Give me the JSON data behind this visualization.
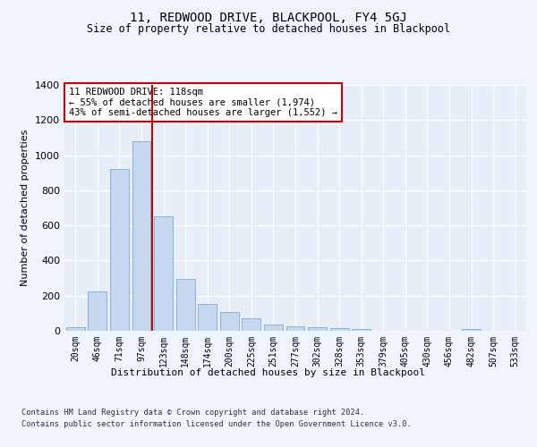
{
  "title": "11, REDWOOD DRIVE, BLACKPOOL, FY4 5GJ",
  "subtitle": "Size of property relative to detached houses in Blackpool",
  "xlabel": "Distribution of detached houses by size in Blackpool",
  "ylabel": "Number of detached properties",
  "categories": [
    "20sqm",
    "46sqm",
    "71sqm",
    "97sqm",
    "123sqm",
    "148sqm",
    "174sqm",
    "200sqm",
    "225sqm",
    "251sqm",
    "277sqm",
    "302sqm",
    "328sqm",
    "353sqm",
    "379sqm",
    "405sqm",
    "430sqm",
    "456sqm",
    "482sqm",
    "507sqm",
    "533sqm"
  ],
  "values": [
    20,
    225,
    920,
    1080,
    650,
    295,
    155,
    105,
    70,
    35,
    25,
    20,
    15,
    10,
    0,
    0,
    0,
    0,
    10,
    0,
    0
  ],
  "bar_color": "#c5d8f0",
  "bar_edge_color": "#7aadd4",
  "vline_color": "#cc0000",
  "annotation_text": "11 REDWOOD DRIVE: 118sqm\n← 55% of detached houses are smaller (1,974)\n43% of semi-detached houses are larger (1,552) →",
  "annotation_box_color": "#ffffff",
  "annotation_box_edge_color": "#cc0000",
  "footnote1": "Contains HM Land Registry data © Crown copyright and database right 2024.",
  "footnote2": "Contains public sector information licensed under the Open Government Licence v3.0.",
  "ylim": [
    0,
    1400
  ],
  "background_color": "#f0f4fd",
  "plot_bg_color": "#e8eef8"
}
